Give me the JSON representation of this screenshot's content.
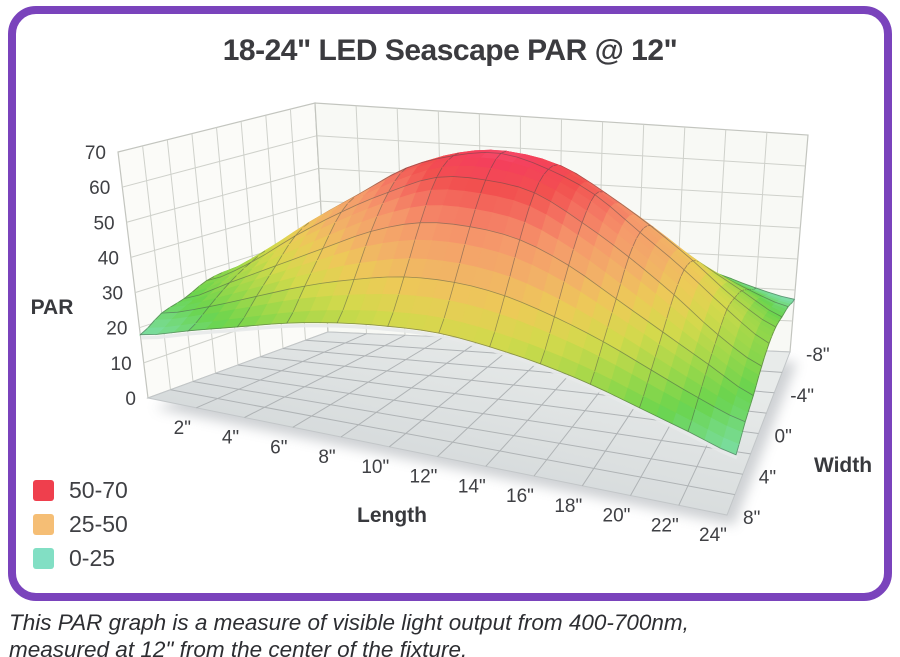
{
  "frame": {
    "border_color": "#7A43BC"
  },
  "title": "18-24\" LED Seascape PAR @ 12\"",
  "caption": {
    "line1": "This PAR graph is a measure of visible light output from 400-700nm,",
    "line2": "measured at 12\" from the center of the fixture."
  },
  "legend": {
    "items": [
      {
        "label": "50-70",
        "color": "#EF3F4D"
      },
      {
        "label": "25-50",
        "color": "#F5BE75"
      },
      {
        "label": "0-25",
        "color": "#82DFC4"
      }
    ]
  },
  "chart_data": {
    "type": "surface",
    "title": "18-24\" LED Seascape PAR @ 12\"",
    "x_label": "Length",
    "x_ticks": [
      "2\"",
      "4\"",
      "6\"",
      "8\"",
      "10\"",
      "12\"",
      "14\"",
      "16\"",
      "18\"",
      "20\"",
      "22\"",
      "24\""
    ],
    "x_tick_values": [
      2,
      4,
      6,
      8,
      10,
      12,
      14,
      16,
      18,
      20,
      22,
      24
    ],
    "x_range_in": [
      0,
      24
    ],
    "y_label": "Width",
    "y_ticks": [
      "-8\"",
      "-4\"",
      "0\"",
      "4\"",
      "8\""
    ],
    "y_tick_values": [
      -8,
      -4,
      0,
      4,
      8
    ],
    "y_range_in": [
      -8,
      8
    ],
    "z_label": "PAR",
    "z_ticks": [
      0,
      10,
      20,
      30,
      40,
      50,
      60,
      70
    ],
    "z_range": [
      0,
      70
    ],
    "width_rows_in": [
      -8,
      -6,
      -4,
      -2,
      0,
      2,
      4,
      6,
      8
    ],
    "length_cols_in": [
      0,
      2,
      4,
      6,
      8,
      10,
      12,
      14,
      16,
      18,
      20,
      22,
      24
    ],
    "values_rows_by_width": [
      [
        17,
        20,
        24,
        27,
        30,
        32,
        33,
        32,
        30,
        27,
        24,
        20,
        17
      ],
      [
        21,
        25,
        30,
        35,
        39,
        42,
        43,
        42,
        39,
        35,
        30,
        25,
        21
      ],
      [
        24,
        30,
        36,
        42,
        48,
        52,
        53,
        52,
        48,
        42,
        36,
        30,
        24
      ],
      [
        27,
        33,
        41,
        48,
        54,
        59,
        60,
        59,
        54,
        48,
        41,
        33,
        27
      ],
      [
        28,
        35,
        43,
        50,
        57,
        61,
        63,
        61,
        57,
        50,
        43,
        35,
        28
      ],
      [
        27,
        33,
        41,
        48,
        54,
        59,
        60,
        59,
        54,
        48,
        41,
        33,
        27
      ],
      [
        24,
        30,
        36,
        42,
        48,
        52,
        53,
        52,
        48,
        42,
        36,
        30,
        24
      ],
      [
        22,
        26,
        31,
        36,
        40,
        43,
        44,
        43,
        40,
        36,
        31,
        26,
        22
      ],
      [
        18,
        22,
        26,
        30,
        33,
        35,
        36,
        35,
        33,
        30,
        26,
        22,
        18
      ]
    ],
    "bands": [
      {
        "range": "50-70",
        "color": "#EF3F4D"
      },
      {
        "range": "25-50",
        "color": "#F5BE75"
      },
      {
        "range": "0-25",
        "color": "#82DFC4"
      }
    ],
    "colormap": [
      [
        8,
        "#A7D8EE"
      ],
      [
        14,
        "#8FE0CC"
      ],
      [
        19,
        "#79DC9B"
      ],
      [
        25,
        "#6AD44E"
      ],
      [
        31,
        "#A6D84A"
      ],
      [
        36,
        "#D3D94C"
      ],
      [
        41,
        "#ECCB57"
      ],
      [
        46,
        "#F2B167"
      ],
      [
        51,
        "#F59A6B"
      ],
      [
        55,
        "#F47763"
      ],
      [
        59,
        "#F2504F"
      ],
      [
        62,
        "#F4405B"
      ],
      [
        64,
        "#F85577"
      ]
    ]
  }
}
